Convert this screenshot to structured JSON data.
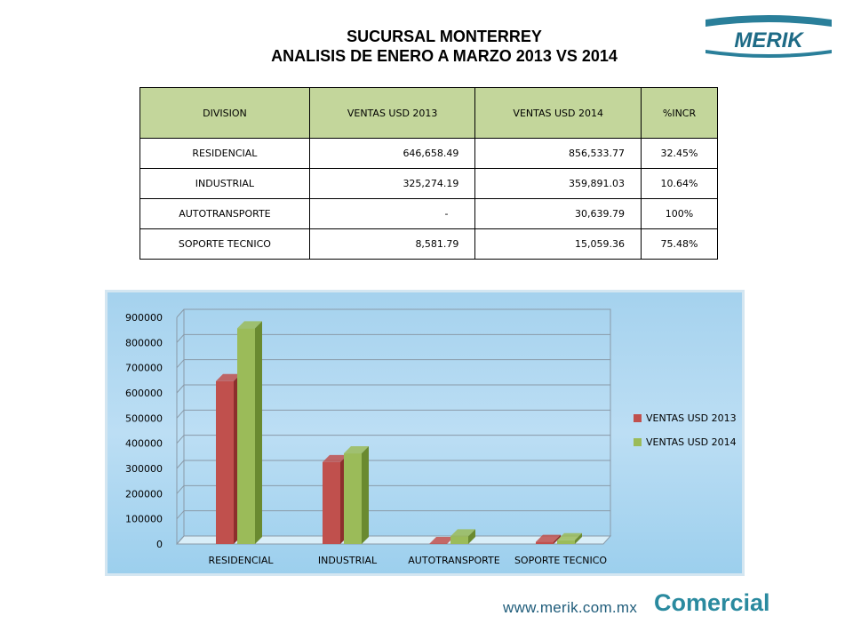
{
  "header": {
    "title_line1": "SUCURSAL MONTERREY",
    "title_line2": "ANALISIS DE ENERO A MARZO 2013 VS 2014",
    "logo_text": "MERIK"
  },
  "table": {
    "headers": [
      "DIVISION",
      "VENTAS USD 2013",
      "VENTAS USD 2014",
      "%INCR"
    ],
    "rows": [
      [
        "RESIDENCIAL",
        "646,658.49",
        "856,533.77",
        "32.45%"
      ],
      [
        "INDUSTRIAL",
        "325,274.19",
        "359,891.03",
        "10.64%"
      ],
      [
        "AUTOTRANSPORTE",
        "-",
        "30,639.79",
        "100%"
      ],
      [
        "SOPORTE TECNICO",
        "8,581.79",
        "15,059.36",
        "75.48%"
      ]
    ]
  },
  "chart_data": {
    "type": "bar",
    "categories": [
      "RESIDENCIAL",
      "INDUSTRIAL",
      "AUTOTRANSPORTE",
      "SOPORTE TECNICO"
    ],
    "series": [
      {
        "name": "VENTAS USD 2013",
        "values": [
          646658.49,
          325274.19,
          0,
          8581.79
        ],
        "color": "#c0504d",
        "shade": "#8c2f2c"
      },
      {
        "name": "VENTAS USD 2014",
        "values": [
          856533.77,
          359891.03,
          30639.79,
          15059.36
        ],
        "color": "#9bbb59",
        "shade": "#6a8a30"
      }
    ],
    "yticks": [
      "0",
      "100000",
      "200000",
      "300000",
      "400000",
      "500000",
      "600000",
      "700000",
      "800000",
      "900000"
    ],
    "ylim": [
      0,
      900000
    ],
    "legend_position": "right",
    "grid": true
  },
  "footer": {
    "url": "www.merik.com.mx",
    "brand": "Comercial"
  }
}
